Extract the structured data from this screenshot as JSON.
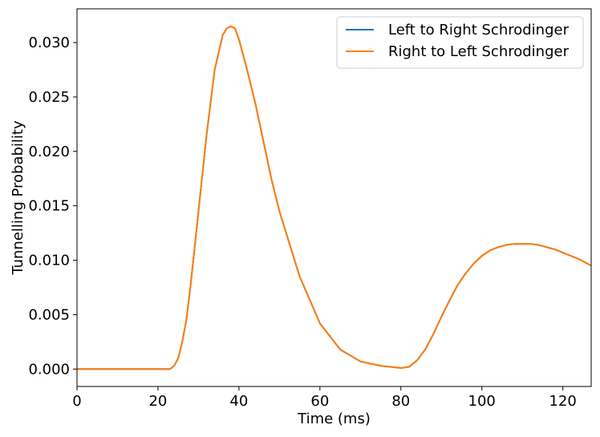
{
  "chart_data": {
    "type": "line",
    "xlabel": "Time (ms)",
    "ylabel": "Tunnelling Probability",
    "xlim": [
      0,
      127
    ],
    "ylim": [
      -0.0016,
      0.0331
    ],
    "xticks": [
      0,
      20,
      40,
      60,
      80,
      100,
      120
    ],
    "xtick_labels": [
      "0",
      "20",
      "40",
      "60",
      "80",
      "100",
      "120"
    ],
    "yticks": [
      0.0,
      0.005,
      0.01,
      0.015,
      0.02,
      0.025,
      0.03
    ],
    "ytick_labels": [
      "0.000",
      "0.005",
      "0.010",
      "0.015",
      "0.020",
      "0.025",
      "0.030"
    ],
    "grid": false,
    "legend": {
      "position": "top-right"
    },
    "series": [
      {
        "name": "Left to Right Schrodinger",
        "color": "#1f77b4",
        "x": [
          0,
          20,
          23,
          24,
          25,
          26,
          27,
          28,
          30,
          32,
          34,
          36,
          37,
          38,
          39,
          40,
          42,
          44,
          46,
          48,
          50,
          55,
          60,
          65,
          70,
          75,
          80,
          82,
          84,
          86,
          88,
          90,
          92,
          94,
          96,
          98,
          100,
          102,
          104,
          106,
          108,
          110,
          112,
          114,
          116,
          118,
          120,
          122,
          124,
          126,
          127
        ],
        "y": [
          0.0,
          0.0,
          0.0,
          0.0003,
          0.001,
          0.0025,
          0.0045,
          0.0075,
          0.0145,
          0.0215,
          0.0275,
          0.0307,
          0.0313,
          0.0315,
          0.0313,
          0.0303,
          0.0275,
          0.0245,
          0.021,
          0.0175,
          0.0145,
          0.0085,
          0.0042,
          0.0018,
          0.0007,
          0.0003,
          0.0001,
          0.0002,
          0.0008,
          0.0018,
          0.0032,
          0.0048,
          0.0063,
          0.0077,
          0.0088,
          0.0097,
          0.0104,
          0.0109,
          0.0112,
          0.0114,
          0.0115,
          0.0115,
          0.0115,
          0.0114,
          0.0112,
          0.011,
          0.0107,
          0.0104,
          0.0101,
          0.0097,
          0.0095
        ]
      },
      {
        "name": "Right to Left Schrodinger",
        "color": "#ff7f0e",
        "x": [
          0,
          20,
          23,
          24,
          25,
          26,
          27,
          28,
          30,
          32,
          34,
          36,
          37,
          38,
          39,
          40,
          42,
          44,
          46,
          48,
          50,
          55,
          60,
          65,
          70,
          75,
          80,
          82,
          84,
          86,
          88,
          90,
          92,
          94,
          96,
          98,
          100,
          102,
          104,
          106,
          108,
          110,
          112,
          114,
          116,
          118,
          120,
          122,
          124,
          126,
          127
        ],
        "y": [
          0.0,
          0.0,
          0.0,
          0.0003,
          0.001,
          0.0025,
          0.0045,
          0.0075,
          0.0145,
          0.0215,
          0.0275,
          0.0307,
          0.0313,
          0.0315,
          0.0313,
          0.0303,
          0.0275,
          0.0245,
          0.021,
          0.0175,
          0.0145,
          0.0085,
          0.0042,
          0.0018,
          0.0007,
          0.0003,
          0.0001,
          0.0002,
          0.0008,
          0.0018,
          0.0032,
          0.0048,
          0.0063,
          0.0077,
          0.0088,
          0.0097,
          0.0104,
          0.0109,
          0.0112,
          0.0114,
          0.0115,
          0.0115,
          0.0115,
          0.0114,
          0.0112,
          0.011,
          0.0107,
          0.0104,
          0.0101,
          0.0097,
          0.0095
        ]
      }
    ]
  }
}
